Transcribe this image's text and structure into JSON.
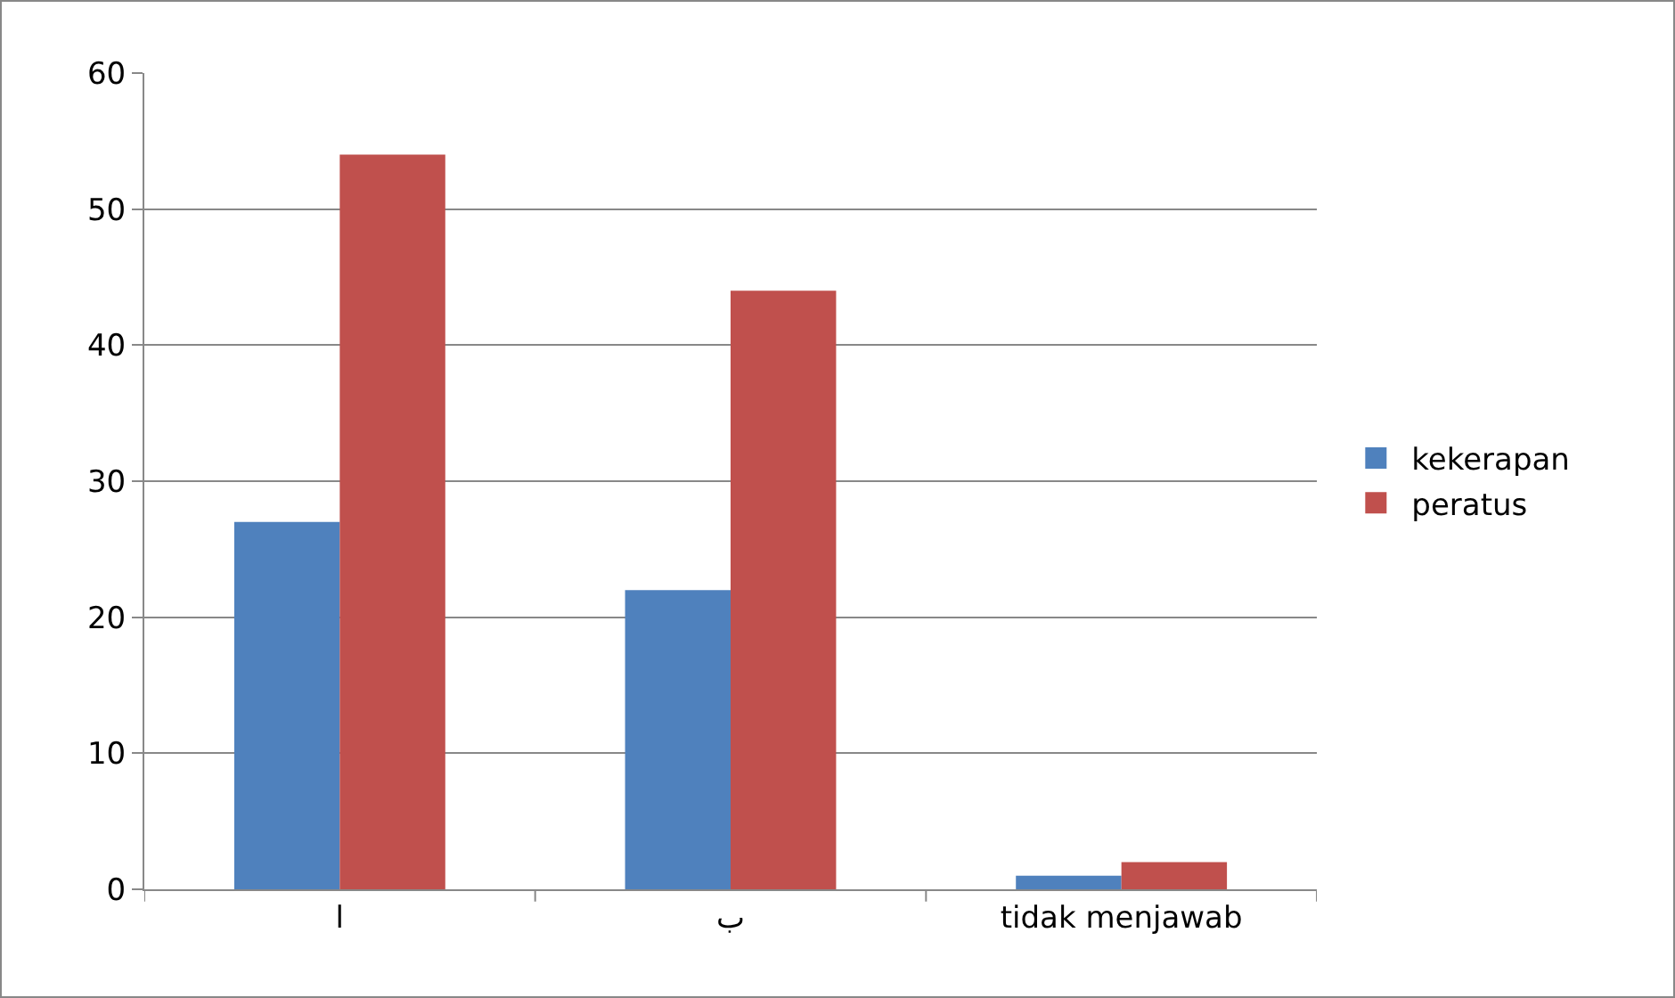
{
  "chart_data": {
    "type": "bar",
    "categories": [
      "ا",
      "ب",
      "tidak menjawab"
    ],
    "series": [
      {
        "name": "kekerapan",
        "color": "#4f81bd",
        "values": [
          27,
          22,
          1
        ]
      },
      {
        "name": "peratus",
        "color": "#c0504d",
        "values": [
          54,
          44,
          2
        ]
      }
    ],
    "ylim": [
      0,
      60
    ],
    "yticks": [
      0,
      10,
      20,
      30,
      40,
      50,
      60
    ],
    "grid": "y",
    "legend": "right"
  }
}
